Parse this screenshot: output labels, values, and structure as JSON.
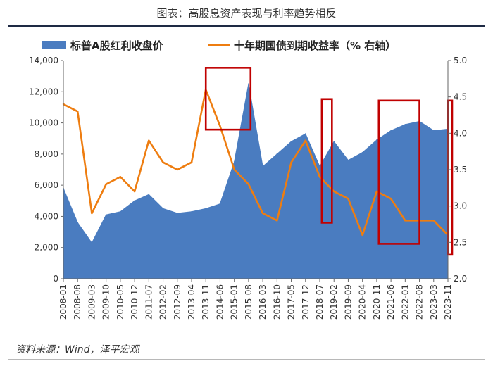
{
  "header": {
    "title": "图表：高股息资产表现与利率趋势相反"
  },
  "footer": {
    "source": "资料来源：Wind，泽平宏观"
  },
  "colors": {
    "area": "#4a7cc0",
    "line": "#ee7d10",
    "box": "#c00000",
    "rule": "#1e2a44"
  },
  "chart_data": {
    "type": "area",
    "categories": [
      "2008-01",
      "2008-08",
      "2009-03",
      "2009-10",
      "2010-05",
      "2010-12",
      "2011-07",
      "2012-02",
      "2012-09",
      "2013-04",
      "2013-11",
      "2014-06",
      "2015-01",
      "2015-08",
      "2016-03",
      "2016-10",
      "2017-05",
      "2017-12",
      "2018-07",
      "2019-02",
      "2019-09",
      "2020-04",
      "2020-11",
      "2021-06",
      "2022-01",
      "2022-08",
      "2023-03",
      "2023-11"
    ],
    "series": [
      {
        "name": "标普A股红利收盘价",
        "axis": "left",
        "type": "area",
        "values": [
          5800,
          3600,
          2300,
          4100,
          4300,
          5000,
          5400,
          4500,
          4200,
          4300,
          4500,
          4800,
          7500,
          12500,
          7200,
          8000,
          8800,
          9300,
          7200,
          8800,
          7600,
          8100,
          8900,
          9500,
          9900,
          10100,
          9500,
          9600
        ]
      },
      {
        "name": "十年期国债到期收益率（% 右轴）",
        "axis": "right",
        "type": "line",
        "values": [
          4.4,
          4.3,
          2.9,
          3.3,
          3.4,
          3.2,
          3.9,
          3.6,
          3.5,
          3.6,
          4.6,
          4.1,
          3.5,
          3.3,
          2.9,
          2.8,
          3.6,
          3.9,
          3.4,
          3.2,
          3.1,
          2.6,
          3.2,
          3.1,
          2.8,
          2.8,
          2.8,
          2.6
        ]
      }
    ],
    "yleft": {
      "ticks": [
        "0",
        "2,000",
        "4,000",
        "6,000",
        "8,000",
        "10,000",
        "12,000",
        "14,000"
      ],
      "ylim": [
        0,
        14000
      ]
    },
    "yright": {
      "ticks": [
        "2.0",
        "2.5",
        "3.0",
        "3.5",
        "4.0",
        "4.5",
        "5.0"
      ],
      "ylim": [
        2.0,
        5.0
      ]
    },
    "highlight_boxes": [
      {
        "from": "2013-11",
        "to": "2015-09",
        "y_from": 4.05,
        "y_to": 4.9
      },
      {
        "from": "2018-08",
        "to": "2019-01",
        "y_from": 2.77,
        "y_to": 4.47
      },
      {
        "from": "2020-12",
        "to": "2022-08",
        "y_from": 2.48,
        "y_to": 4.45
      },
      {
        "from": "2023-11",
        "to": "2023-12",
        "y_from": 2.33,
        "y_to": 4.45
      }
    ],
    "legend": "top",
    "grid": false
  }
}
